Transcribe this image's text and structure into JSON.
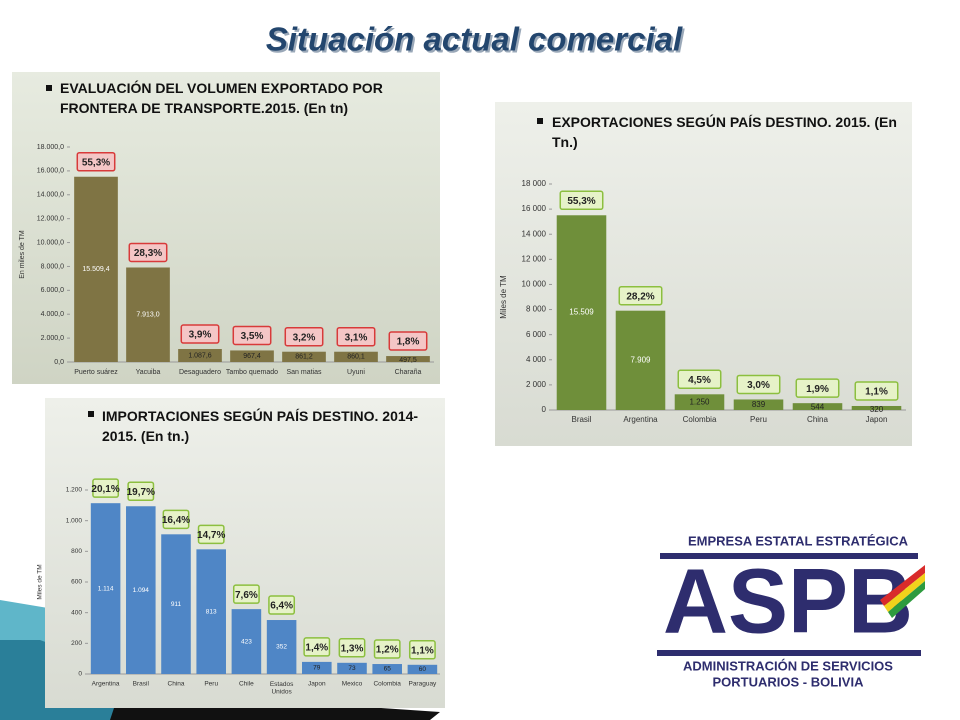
{
  "title": "Situación actual comercial",
  "chart_data": [
    {
      "type": "bar",
      "title": "EVALUACIÓN DEL VOLUMEN EXPORTADO POR FRONTERA DE TRANSPORTE.2015. (En tn)",
      "y_label": "En miles de TM",
      "categories": [
        "Puerto suárez",
        "Yacuiba",
        "Desaguadero",
        "Tambo quemado",
        "San matias",
        "Uyuni",
        "Charaña"
      ],
      "values": [
        15509.4,
        7913.0,
        1087.6,
        967.4,
        861.2,
        860.1,
        497.5
      ],
      "value_labels": [
        "15.509,4",
        "7.913,0",
        "1.087,6",
        "967,4",
        "861,2",
        "860,1",
        "497,5"
      ],
      "percent_labels": [
        "55,3%",
        "28,3%",
        "3,9%",
        "3,5%",
        "3,2%",
        "3,1%",
        "1,8%"
      ],
      "color": "#7f7444",
      "label_box_fill": "#f4c6c6",
      "label_box_stroke": "#d83a3a",
      "ylim": [
        0,
        18000
      ],
      "yticks": [
        {
          "value": 0,
          "label": "0,0"
        },
        {
          "value": 2000,
          "label": "2.000,0"
        },
        {
          "value": 4000,
          "label": "4.000,0"
        },
        {
          "value": 6000,
          "label": "6.000,0"
        },
        {
          "value": 8000,
          "label": "8.000,0"
        },
        {
          "value": 10000,
          "label": "10.000,0"
        },
        {
          "value": 12000,
          "label": "12.000,0"
        },
        {
          "value": 14000,
          "label": "14.000,0"
        },
        {
          "value": 16000,
          "label": "16.000,0"
        },
        {
          "value": 18000,
          "label": "18.000,0"
        }
      ]
    },
    {
      "type": "bar",
      "title": "EXPORTACIONES SEGÚN PAÍS DESTINO. 2015. (En Tn.)",
      "y_label": "Miles de TM",
      "categories": [
        "Brasil",
        "Argentina",
        "Colombia",
        "Peru",
        "China",
        "Japon"
      ],
      "values": [
        15509,
        7909,
        1250,
        839,
        544,
        320
      ],
      "value_labels": [
        "15.509",
        "7.909",
        "1.250",
        "839",
        "544",
        "320"
      ],
      "percent_labels": [
        "55,3%",
        "28,2%",
        "4,5%",
        "3,0%",
        "1,9%",
        "1,1%"
      ],
      "color": "#6f8f3a",
      "label_box_fill": "#e6f2c8",
      "label_box_stroke": "#8cbf3f",
      "ylim": [
        0,
        18000
      ],
      "yticks": [
        0,
        {
          "value": 2000,
          "label": "2 000"
        },
        {
          "value": 4000,
          "label": "4 000"
        },
        {
          "value": 6000,
          "label": "6 000"
        },
        {
          "value": 8000,
          "label": "8 000"
        },
        {
          "value": 10000,
          "label": "10 000"
        },
        {
          "value": 12000,
          "label": "12 000"
        },
        {
          "value": 14000,
          "label": "14 000"
        },
        {
          "value": 16000,
          "label": "16 000"
        },
        {
          "value": 18000,
          "label": "18 000"
        }
      ]
    },
    {
      "type": "bar",
      "title": "IMPORTACIONES SEGÚN PAÍS DESTINO. 2014-2015. (En tn.)",
      "y_label": "Miles de TM",
      "categories": [
        "Argentina",
        "Brasil",
        "China",
        "Peru",
        "Chile",
        "Estados Unidos",
        "Japon",
        "Mexico",
        "Colombia",
        "Paraguay"
      ],
      "values": [
        1114,
        1094,
        911,
        813,
        423,
        352,
        79,
        73,
        65,
        60
      ],
      "value_labels": [
        "1.114",
        "1.094",
        "911",
        "813",
        "423",
        "352",
        "79",
        "73",
        "65",
        "60"
      ],
      "percent_labels": [
        "20,1%",
        "19,7%",
        "16,4%",
        "14,7%",
        "7,6%",
        "6,4%",
        "1,4%",
        "1,3%",
        "1,2%",
        "1,1%"
      ],
      "color": "#4f86c6",
      "label_box_fill": "#e6f2c8",
      "label_box_stroke": "#8cbf3f",
      "ylim": [
        0,
        1200
      ],
      "yticks": [
        0,
        200,
        400,
        600,
        800,
        {
          "value": 1000,
          "label": "1.000"
        },
        {
          "value": 1200,
          "label": "1.200"
        }
      ]
    }
  ],
  "logo": {
    "top": "EMPRESA ESTATAL ESTRATÉGICA",
    "letters": "ASPB",
    "bottom_1": "ADMINISTRACIÓN DE SERVICIOS",
    "bottom_2": "PORTUARIOS - BOLIVIA"
  }
}
